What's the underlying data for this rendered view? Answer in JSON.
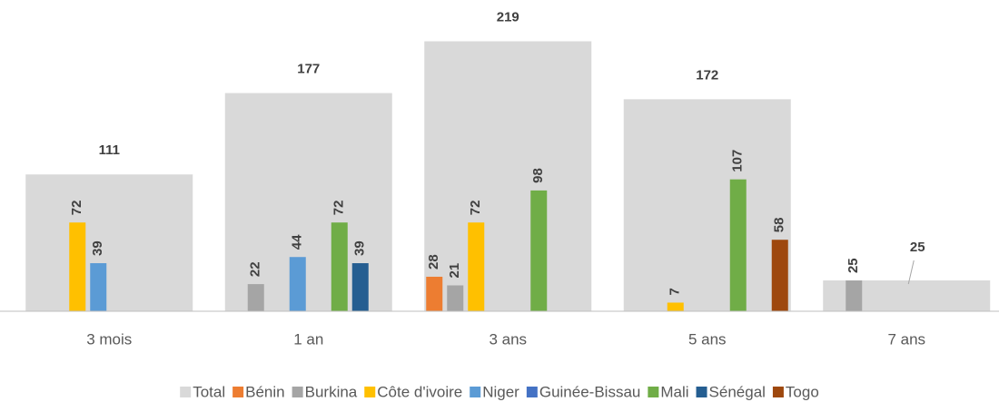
{
  "chart_data": {
    "type": "bar",
    "categories": [
      "3 mois",
      "1 an",
      "3 ans",
      "5 ans",
      "7 ans"
    ],
    "series": [
      {
        "name": "Total",
        "color": "#d9d9d9",
        "values": [
          111,
          177,
          219,
          172,
          25
        ]
      },
      {
        "name": "Bénin",
        "color": "#ed7d31",
        "values": [
          null,
          null,
          28,
          null,
          null
        ]
      },
      {
        "name": "Burkina",
        "color": "#a5a5a5",
        "values": [
          null,
          22,
          21,
          null,
          25
        ]
      },
      {
        "name": "Côte d'ivoire",
        "color": "#ffc000",
        "values": [
          72,
          null,
          72,
          7,
          null
        ]
      },
      {
        "name": "Niger",
        "color": "#5b9bd5",
        "values": [
          39,
          44,
          null,
          null,
          null
        ]
      },
      {
        "name": "Guinée-Bissau",
        "color": "#4472c4",
        "values": [
          null,
          null,
          null,
          null,
          null
        ]
      },
      {
        "name": "Mali",
        "color": "#70ad47",
        "values": [
          null,
          72,
          98,
          107,
          null
        ]
      },
      {
        "name": "Sénégal",
        "color": "#255e91",
        "values": [
          null,
          39,
          null,
          null,
          null
        ]
      },
      {
        "name": "Togo",
        "color": "#9e480e",
        "values": [
          null,
          null,
          null,
          58,
          null
        ]
      }
    ],
    "ylim": [
      0,
      240
    ],
    "legend": "bottom"
  }
}
